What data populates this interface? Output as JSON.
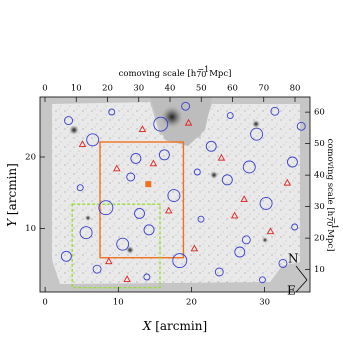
{
  "chart_data": {
    "type": "image",
    "xlabel": {
      "italic": "X",
      "rest": "[arcmin]"
    },
    "ylabel": {
      "italic": "Y",
      "rest": "[arcmin]"
    },
    "x2label": {
      "text": "comoving scale [h",
      "sub": "70",
      "sup": "−1",
      "unit": "Mpc]"
    },
    "y2label": {
      "text": "comoving scale [h",
      "sub": "70",
      "sup": "−1",
      "unit": "Mpc]"
    },
    "xlim": [
      -0.7,
      36.2
    ],
    "xticks": [
      0,
      10,
      20,
      30
    ],
    "ylim": [
      1.1,
      28.4
    ],
    "yticks": [
      10,
      20
    ],
    "x2lim": [
      -1.6,
      84.8
    ],
    "x2ticks": [
      0,
      10,
      20,
      30,
      40,
      50,
      60,
      70,
      80
    ],
    "y2lim": [
      2.9,
      64.8
    ],
    "y2ticks": [
      10,
      20,
      30,
      40,
      50,
      60
    ],
    "compass": [
      "N",
      "E"
    ],
    "boxes": [
      {
        "color": "#f07020",
        "dash": false,
        "x": [
          7.5,
          18.9
        ],
        "y": [
          5.9,
          22.1
        ]
      },
      {
        "color": "#99dd33",
        "dash": true,
        "x": [
          3.7,
          15.7
        ],
        "y": [
          1.7,
          13.4
        ]
      }
    ],
    "series": [
      {
        "marker": "circle",
        "color": "#3a3fd0",
        "x": [
          3.2,
          6.5,
          9.1,
          12.4,
          15.8,
          19.2,
          22.7,
          25.3,
          28.9,
          31.4,
          33.8,
          4.8,
          8.3,
          11.7,
          14.2,
          17.6,
          21.3,
          24.9,
          27.5,
          30.2,
          34.1,
          2.9,
          7.1,
          10.6,
          13.9,
          18.4,
          23.8,
          26.6,
          29.7,
          32.5,
          5.6,
          16.3,
          20.8,
          35.0,
          12.9,
          27.9
        ],
        "y": [
          25.1,
          22.4,
          26.3,
          19.8,
          24.6,
          27.1,
          21.5,
          25.8,
          23.2,
          26.4,
          19.3,
          15.7,
          12.9,
          17.2,
          9.8,
          14.6,
          11.3,
          16.8,
          8.4,
          13.5,
          10.2,
          6.1,
          4.3,
          7.8,
          3.2,
          5.5,
          3.9,
          6.7,
          2.8,
          5.1,
          9.4,
          20.3,
          17.9,
          24.3,
          12.1,
          18.6
        ],
        "sizes": [
          4,
          6,
          3,
          5,
          7,
          4,
          5,
          3,
          6,
          4,
          5,
          3,
          7,
          4,
          5,
          6,
          3,
          5,
          4,
          6,
          3,
          5,
          4,
          6,
          3,
          7,
          4,
          5,
          3,
          4,
          6,
          5,
          3,
          4,
          5,
          6
        ]
      },
      {
        "marker": "triangle",
        "color": "#e02020",
        "x": [
          5.1,
          9.8,
          13.3,
          16.9,
          20.4,
          24.1,
          27.2,
          30.8,
          8.7,
          14.8,
          19.6,
          25.9,
          11.2,
          33.1
        ],
        "y": [
          21.8,
          18.4,
          23.9,
          12.5,
          7.2,
          19.9,
          14.1,
          9.6,
          5.4,
          19.1,
          24.8,
          11.8,
          2.9,
          16.4
        ],
        "sizes": [
          3,
          3,
          3,
          3,
          3,
          3,
          3,
          3,
          3,
          3,
          3,
          3,
          3,
          3
        ]
      },
      {
        "marker": "square",
        "color": "#f07020",
        "x": [
          14.1
        ],
        "y": [
          16.2
        ],
        "sizes": [
          3
        ]
      }
    ]
  }
}
